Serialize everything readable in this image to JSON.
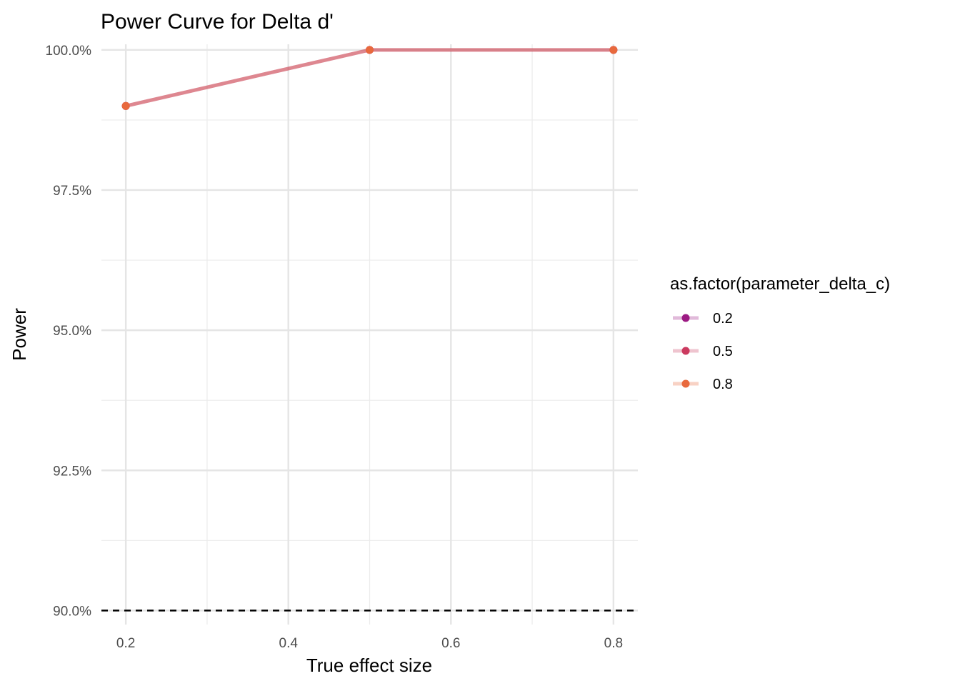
{
  "chart_data": {
    "type": "line",
    "title": "Power Curve for Delta d'",
    "xlabel": "True effect size",
    "ylabel": "Power",
    "x_ticks": [
      "0.2",
      "0.4",
      "0.6",
      "0.8"
    ],
    "y_ticks": [
      "90.0%",
      "92.5%",
      "95.0%",
      "97.5%",
      "100.0%"
    ],
    "xlim": [
      0.17,
      0.83
    ],
    "ylim": [
      0.8975,
      1.001
    ],
    "grid": true,
    "reference_line": {
      "y": 0.9,
      "style": "dashed",
      "color": "#000000"
    },
    "legend": {
      "title": "as.factor(parameter_delta_c)",
      "position": "right",
      "entries": [
        {
          "label": "0.2",
          "color": "#9c1a83"
        },
        {
          "label": "0.5",
          "color": "#cb3a5f"
        },
        {
          "label": "0.8",
          "color": "#e8693d"
        }
      ]
    },
    "x": [
      0.2,
      0.5,
      0.8
    ],
    "series": [
      {
        "name": "0.2",
        "color": "#9c1a83",
        "values": [
          0.99,
          1.0,
          1.0
        ]
      },
      {
        "name": "0.5",
        "color": "#cb3a5f",
        "values": [
          0.99,
          1.0,
          1.0
        ]
      },
      {
        "name": "0.8",
        "color": "#e8693d",
        "values": [
          0.99,
          1.0,
          1.0
        ]
      }
    ]
  }
}
